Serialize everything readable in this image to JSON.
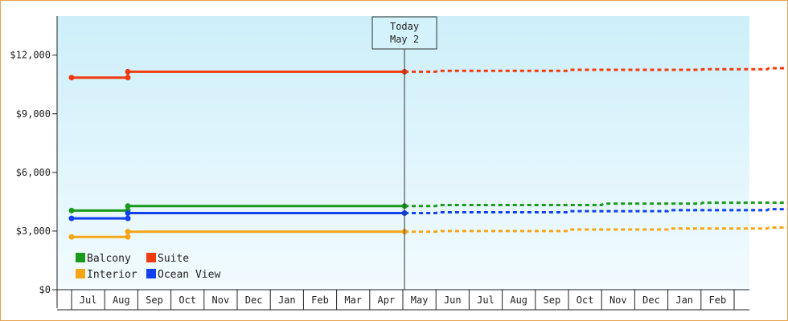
{
  "chart_data": {
    "type": "line",
    "today_marker": {
      "line1": "Today",
      "line2": "May 2",
      "month_index": 10.05
    },
    "y_ticks": [
      "$0",
      "$3,000",
      "$6,000",
      "$9,000",
      "$12,000"
    ],
    "y_tick_values": [
      0,
      3000,
      6000,
      9000,
      12000
    ],
    "ylim": [
      0,
      14000
    ],
    "months": [
      "",
      "Jul",
      "Aug",
      "Sep",
      "Oct",
      "Nov",
      "Dec",
      "Jan",
      "Feb",
      "Mar",
      "Apr",
      "May",
      "Jun",
      "Jul",
      "Aug",
      "Sep",
      "Oct",
      "Nov",
      "Dec",
      "Jan",
      "Feb",
      ""
    ],
    "grid": false,
    "legend_placement": "bottom-left",
    "series": [
      {
        "name": "Balcony",
        "color": "#1a9a1a",
        "history": [
          [
            0,
            4050
          ],
          [
            1.7,
            4050
          ],
          [
            1.7,
            4280
          ],
          [
            10.05,
            4280
          ]
        ],
        "history_points": [
          [
            0,
            4050
          ],
          [
            1.7,
            4050
          ],
          [
            1.7,
            4280
          ],
          [
            10.05,
            4280
          ]
        ],
        "forecast": [
          [
            10.05,
            4280
          ],
          [
            11.0,
            4280
          ],
          [
            11.05,
            4330
          ],
          [
            16.0,
            4330
          ],
          [
            16.05,
            4400
          ],
          [
            19.0,
            4400
          ],
          [
            19.05,
            4450
          ],
          [
            22.0,
            4450
          ],
          [
            22.05,
            4500
          ],
          [
            22.5,
            4500
          ]
        ]
      },
      {
        "name": "Suite",
        "color": "#f03a10",
        "history": [
          [
            0,
            10850
          ],
          [
            1.7,
            10850
          ],
          [
            1.7,
            11150
          ],
          [
            10.05,
            11150
          ]
        ],
        "history_points": [
          [
            0,
            10850
          ],
          [
            1.7,
            10850
          ],
          [
            1.7,
            11150
          ],
          [
            10.05,
            11150
          ]
        ],
        "forecast": [
          [
            10.05,
            11150
          ],
          [
            11.0,
            11150
          ],
          [
            11.05,
            11200
          ],
          [
            15.0,
            11200
          ],
          [
            15.05,
            11250
          ],
          [
            19.0,
            11250
          ],
          [
            19.05,
            11280
          ],
          [
            21.0,
            11280
          ],
          [
            21.05,
            11330
          ],
          [
            22.5,
            11330
          ]
        ]
      },
      {
        "name": "Interior",
        "color": "#f5a516",
        "history": [
          [
            0,
            2700
          ],
          [
            1.7,
            2700
          ],
          [
            1.7,
            2970
          ],
          [
            10.05,
            2970
          ]
        ],
        "history_points": [
          [
            0,
            2700
          ],
          [
            1.7,
            2700
          ],
          [
            1.7,
            2970
          ],
          [
            10.05,
            2970
          ]
        ],
        "forecast": [
          [
            10.05,
            2970
          ],
          [
            11.0,
            2970
          ],
          [
            11.05,
            3000
          ],
          [
            15.0,
            3000
          ],
          [
            15.05,
            3080
          ],
          [
            18.0,
            3080
          ],
          [
            18.05,
            3130
          ],
          [
            21.0,
            3130
          ],
          [
            21.05,
            3180
          ],
          [
            22.5,
            3180
          ]
        ]
      },
      {
        "name": "Ocean View",
        "color": "#1040f0",
        "history": [
          [
            0,
            3650
          ],
          [
            1.7,
            3650
          ],
          [
            1.7,
            3920
          ],
          [
            10.05,
            3920
          ]
        ],
        "history_points": [
          [
            0,
            3650
          ],
          [
            1.7,
            3650
          ],
          [
            1.7,
            3920
          ],
          [
            10.05,
            3920
          ]
        ],
        "forecast": [
          [
            10.05,
            3920
          ],
          [
            11.0,
            3920
          ],
          [
            11.05,
            3960
          ],
          [
            15.0,
            3960
          ],
          [
            15.05,
            4020
          ],
          [
            18.0,
            4020
          ],
          [
            18.05,
            4070
          ],
          [
            21.0,
            4070
          ],
          [
            21.05,
            4120
          ],
          [
            22.5,
            4120
          ]
        ]
      }
    ]
  }
}
